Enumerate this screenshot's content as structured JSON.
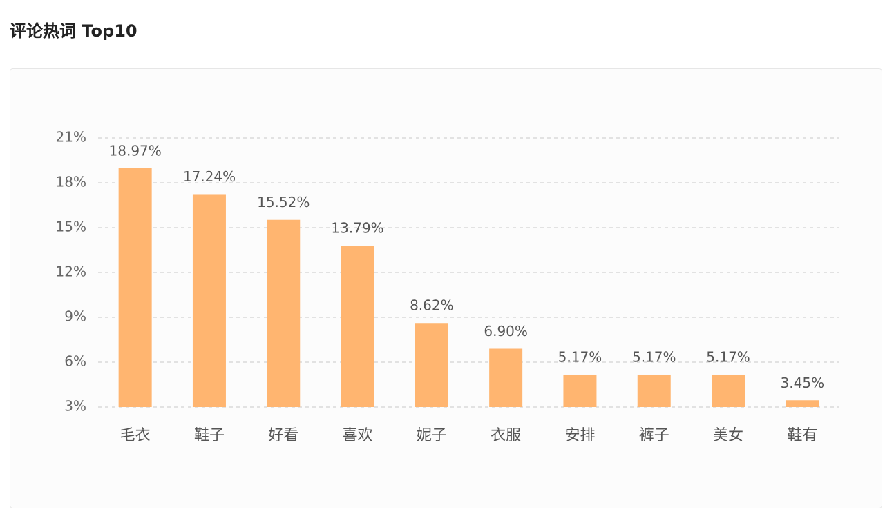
{
  "chart_data": {
    "type": "bar",
    "title": "评论热词 Top10",
    "categories": [
      "毛衣",
      "鞋子",
      "好看",
      "喜欢",
      "妮子",
      "衣服",
      "安排",
      "裤子",
      "美女",
      "鞋有"
    ],
    "values": [
      18.97,
      17.24,
      15.52,
      13.79,
      8.62,
      6.9,
      5.17,
      5.17,
      5.17,
      3.45
    ],
    "value_labels": [
      "18.97%",
      "17.24%",
      "15.52%",
      "13.79%",
      "8.62%",
      "6.90%",
      "5.17%",
      "5.17%",
      "5.17%",
      "3.45%"
    ],
    "color": "#ffb570",
    "ylim": [
      3,
      21
    ],
    "yticks": [
      {
        "value": 3,
        "label": "3%"
      },
      {
        "value": 6,
        "label": "6%"
      },
      {
        "value": 9,
        "label": "9%"
      },
      {
        "value": 12,
        "label": "12%"
      },
      {
        "value": 15,
        "label": "15%"
      },
      {
        "value": 18,
        "label": "18%"
      },
      {
        "value": 21,
        "label": "21%"
      }
    ],
    "grid": true
  }
}
